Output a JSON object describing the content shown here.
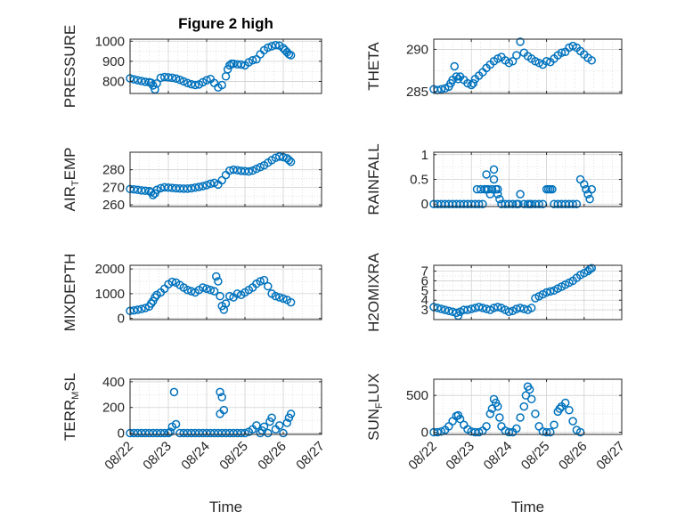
{
  "figure": {
    "title": "Figure 2 high",
    "colors": {
      "marker": "#0072BD",
      "grid": "#d0d0d0",
      "axis": "#262626",
      "background": "#ffffff"
    },
    "x_tick_labels": [
      "08/22",
      "08/23",
      "08/24",
      "08/25",
      "08/26",
      "08/27"
    ]
  },
  "chart_data": [
    {
      "id": "pressure",
      "type": "scatter",
      "title": "Figure 2 high",
      "ylabel": "PRESSURE",
      "xlabel": "",
      "xlim": [
        0,
        5
      ],
      "ylim": [
        740,
        1010
      ],
      "yticks": [
        800,
        900,
        1000
      ],
      "grid": true,
      "x": [
        0.0,
        0.1,
        0.2,
        0.3,
        0.4,
        0.5,
        0.55,
        0.6,
        0.65,
        0.7,
        0.8,
        0.9,
        1.0,
        1.1,
        1.2,
        1.3,
        1.4,
        1.5,
        1.6,
        1.7,
        1.8,
        1.9,
        2.0,
        2.1,
        2.2,
        2.3,
        2.4,
        2.5,
        2.55,
        2.6,
        2.65,
        2.7,
        2.8,
        2.9,
        3.0,
        3.1,
        3.2,
        3.3,
        3.4,
        3.5,
        3.6,
        3.7,
        3.8,
        3.9,
        4.0,
        4.05,
        4.1,
        4.15,
        4.2
      ],
      "y": [
        815,
        810,
        806,
        802,
        798,
        796,
        793,
        780,
        760,
        790,
        818,
        822,
        820,
        818,
        814,
        808,
        800,
        792,
        786,
        782,
        785,
        796,
        806,
        812,
        792,
        770,
        782,
        825,
        860,
        880,
        888,
        888,
        885,
        884,
        880,
        895,
        905,
        910,
        935,
        955,
        968,
        975,
        980,
        978,
        965,
        955,
        945,
        935,
        930
      ]
    },
    {
      "id": "theta",
      "type": "scatter",
      "ylabel": "THETA",
      "xlabel": "",
      "xlim": [
        0,
        5
      ],
      "ylim": [
        284.8,
        291.2
      ],
      "yticks": [
        285,
        290
      ],
      "grid": true,
      "x": [
        0.0,
        0.1,
        0.2,
        0.3,
        0.4,
        0.45,
        0.5,
        0.55,
        0.6,
        0.65,
        0.7,
        0.8,
        0.9,
        1.0,
        1.05,
        1.1,
        1.2,
        1.3,
        1.4,
        1.5,
        1.6,
        1.7,
        1.8,
        1.9,
        2.0,
        2.1,
        2.2,
        2.3,
        2.4,
        2.5,
        2.6,
        2.7,
        2.8,
        2.9,
        3.0,
        3.1,
        3.2,
        3.3,
        3.4,
        3.5,
        3.6,
        3.7,
        3.8,
        3.9,
        4.0,
        4.1,
        4.2
      ],
      "y": [
        285.3,
        285.2,
        285.3,
        285.4,
        285.6,
        286.0,
        286.4,
        288.0,
        286.8,
        286.5,
        286.8,
        286.4,
        286.0,
        285.8,
        286.0,
        286.5,
        286.9,
        287.3,
        287.8,
        288.2,
        288.6,
        288.9,
        289.1,
        288.7,
        288.4,
        288.6,
        289.3,
        290.9,
        289.6,
        289.2,
        288.9,
        288.6,
        288.4,
        288.2,
        288.6,
        288.5,
        288.9,
        289.3,
        289.6,
        289.7,
        290.2,
        290.4,
        290.2,
        289.8,
        289.4,
        289.0,
        288.7
      ]
    },
    {
      "id": "air_temp",
      "type": "scatter",
      "ylabel": "AIR_TEMP",
      "xlabel": "",
      "xlim": [
        0,
        5
      ],
      "ylim": [
        259,
        290
      ],
      "yticks": [
        260,
        270,
        280
      ],
      "grid": true,
      "x": [
        0.0,
        0.1,
        0.2,
        0.3,
        0.4,
        0.5,
        0.55,
        0.6,
        0.65,
        0.7,
        0.8,
        0.9,
        1.0,
        1.1,
        1.2,
        1.3,
        1.4,
        1.5,
        1.6,
        1.7,
        1.8,
        1.9,
        2.0,
        2.1,
        2.2,
        2.3,
        2.4,
        2.5,
        2.6,
        2.7,
        2.8,
        2.9,
        3.0,
        3.1,
        3.2,
        3.3,
        3.4,
        3.5,
        3.6,
        3.7,
        3.8,
        3.9,
        4.0,
        4.1,
        4.15,
        4.2
      ],
      "y": [
        269,
        268.8,
        268.5,
        268.2,
        268,
        267.8,
        267.2,
        265.5,
        266.5,
        268.5,
        269.5,
        270,
        269.8,
        269.6,
        269.4,
        269.3,
        269.2,
        269.2,
        269.4,
        269.8,
        270.2,
        270.6,
        271.2,
        272,
        272.5,
        271.5,
        274,
        277,
        279.5,
        280,
        279.7,
        279.4,
        279.2,
        279,
        279.5,
        280.5,
        281.5,
        282.5,
        284,
        285.5,
        286.8,
        287.5,
        287.2,
        286.5,
        285.5,
        284.5
      ]
    },
    {
      "id": "rainfall",
      "type": "scatter",
      "ylabel": "RAINFALL",
      "xlabel": "",
      "xlim": [
        0,
        5
      ],
      "ylim": [
        -0.05,
        1.05
      ],
      "yticks": [
        0,
        0.5,
        1
      ],
      "grid": true,
      "x": [
        0.0,
        0.1,
        0.2,
        0.3,
        0.4,
        0.5,
        0.6,
        0.7,
        0.8,
        0.9,
        1.0,
        1.1,
        1.15,
        1.2,
        1.25,
        1.3,
        1.35,
        1.4,
        1.4,
        1.45,
        1.5,
        1.55,
        1.6,
        1.6,
        1.65,
        1.7,
        1.7,
        1.75,
        1.8,
        1.9,
        2.0,
        2.1,
        2.2,
        2.25,
        2.3,
        2.4,
        2.5,
        2.55,
        2.6,
        2.7,
        2.8,
        2.9,
        3.0,
        3.05,
        3.1,
        3.15,
        3.2,
        3.3,
        3.4,
        3.5,
        3.6,
        3.7,
        3.8,
        3.9,
        4.0,
        4.05,
        4.1,
        4.15,
        4.2
      ],
      "y": [
        0,
        0,
        0,
        0,
        0,
        0,
        0,
        0,
        0,
        0,
        0,
        0,
        0.3,
        0,
        0.3,
        0,
        0.3,
        0.3,
        0.6,
        0.3,
        0.2,
        0.3,
        0.5,
        0.7,
        0.3,
        0.3,
        0.2,
        0.1,
        0,
        0,
        0,
        0,
        0,
        0,
        0.2,
        0,
        0,
        0,
        0,
        0,
        0,
        0,
        0.3,
        0.3,
        0.3,
        0.3,
        0,
        0,
        0,
        0,
        0,
        0,
        0,
        0.5,
        0.4,
        0.3,
        0.2,
        0.1,
        0.3
      ]
    },
    {
      "id": "mixdepth",
      "type": "scatter",
      "ylabel": "MIXDEPTH",
      "xlabel": "",
      "xlim": [
        0,
        5
      ],
      "ylim": [
        -50,
        2150
      ],
      "yticks": [
        0,
        1000,
        2000
      ],
      "grid": true,
      "x": [
        0.0,
        0.1,
        0.2,
        0.3,
        0.4,
        0.5,
        0.55,
        0.6,
        0.65,
        0.7,
        0.8,
        0.9,
        1.0,
        1.1,
        1.2,
        1.3,
        1.4,
        1.5,
        1.6,
        1.7,
        1.8,
        1.9,
        2.0,
        2.1,
        2.2,
        2.25,
        2.3,
        2.35,
        2.4,
        2.45,
        2.5,
        2.6,
        2.7,
        2.8,
        2.9,
        3.0,
        3.1,
        3.2,
        3.3,
        3.4,
        3.5,
        3.6,
        3.7,
        3.8,
        3.9,
        4.0,
        4.1,
        4.2
      ],
      "y": [
        300,
        320,
        350,
        380,
        420,
        480,
        600,
        700,
        850,
        950,
        1050,
        1200,
        1380,
        1480,
        1450,
        1350,
        1250,
        1150,
        1100,
        1050,
        1150,
        1250,
        1200,
        1150,
        1100,
        1700,
        1500,
        900,
        500,
        350,
        600,
        900,
        850,
        1000,
        950,
        1050,
        1150,
        1250,
        1400,
        1500,
        1550,
        1300,
        1000,
        900,
        850,
        800,
        750,
        650
      ]
    },
    {
      "id": "h2omixra",
      "type": "scatter",
      "ylabel": "H2OMIXRA",
      "xlabel": "",
      "xlim": [
        0,
        5
      ],
      "ylim": [
        2.0,
        7.6
      ],
      "yticks": [
        3,
        4,
        5,
        6,
        7
      ],
      "grid": true,
      "x": [
        0.0,
        0.1,
        0.2,
        0.3,
        0.4,
        0.5,
        0.6,
        0.65,
        0.7,
        0.8,
        0.9,
        1.0,
        1.1,
        1.2,
        1.3,
        1.4,
        1.5,
        1.6,
        1.7,
        1.8,
        1.9,
        2.0,
        2.1,
        2.2,
        2.3,
        2.4,
        2.5,
        2.6,
        2.7,
        2.8,
        2.9,
        3.0,
        3.1,
        3.2,
        3.3,
        3.4,
        3.5,
        3.6,
        3.7,
        3.8,
        3.9,
        4.0,
        4.1,
        4.15,
        4.2
      ],
      "y": [
        3.3,
        3.2,
        3.1,
        3.0,
        2.9,
        2.8,
        2.7,
        2.4,
        2.8,
        3.0,
        3.0,
        3.1,
        3.2,
        3.3,
        3.2,
        3.1,
        3.0,
        3.2,
        3.3,
        3.2,
        3.0,
        2.8,
        2.9,
        3.1,
        3.2,
        3.1,
        3.0,
        3.2,
        4.2,
        4.4,
        4.6,
        4.8,
        4.9,
        5.0,
        5.2,
        5.4,
        5.6,
        5.8,
        6.0,
        6.3,
        6.6,
        6.8,
        7.0,
        7.2,
        7.3
      ]
    },
    {
      "id": "terr_msl",
      "type": "scatter",
      "ylabel": "TERR_MSL",
      "xlabel": "Time",
      "xlim": [
        0,
        5
      ],
      "ylim": [
        -10,
        420
      ],
      "yticks": [
        0,
        200,
        400
      ],
      "grid": true,
      "x": [
        0.0,
        0.1,
        0.2,
        0.3,
        0.4,
        0.5,
        0.6,
        0.7,
        0.8,
        0.9,
        1.0,
        1.05,
        1.1,
        1.15,
        1.2,
        1.3,
        1.4,
        1.5,
        1.6,
        1.7,
        1.8,
        1.9,
        2.0,
        2.1,
        2.2,
        2.3,
        2.35,
        2.35,
        2.4,
        2.4,
        2.45,
        2.5,
        2.6,
        2.7,
        2.8,
        2.9,
        3.0,
        3.1,
        3.2,
        3.3,
        3.4,
        3.45,
        3.5,
        3.6,
        3.65,
        3.7,
        3.8,
        3.9,
        4.0,
        4.1,
        4.15,
        4.2
      ],
      "y": [
        0,
        0,
        0,
        0,
        0,
        0,
        0,
        0,
        0,
        0,
        0,
        10,
        50,
        320,
        70,
        0,
        0,
        0,
        0,
        0,
        0,
        0,
        0,
        0,
        0,
        0,
        150,
        320,
        280,
        0,
        180,
        0,
        0,
        0,
        0,
        0,
        0,
        10,
        30,
        60,
        0,
        20,
        50,
        0,
        90,
        120,
        30,
        60,
        0,
        80,
        120,
        150
      ]
    },
    {
      "id": "sun_flux",
      "type": "scatter",
      "ylabel": "SUN_FLUX",
      "xlabel": "Time",
      "xlim": [
        0,
        5
      ],
      "ylim": [
        -30,
        720
      ],
      "yticks": [
        0,
        500
      ],
      "grid": true,
      "x": [
        0.0,
        0.1,
        0.2,
        0.3,
        0.4,
        0.5,
        0.6,
        0.65,
        0.7,
        0.8,
        0.9,
        1.0,
        1.1,
        1.2,
        1.3,
        1.4,
        1.5,
        1.55,
        1.6,
        1.65,
        1.7,
        1.75,
        1.8,
        1.9,
        2.0,
        2.1,
        2.2,
        2.3,
        2.4,
        2.45,
        2.5,
        2.55,
        2.6,
        2.7,
        2.8,
        2.9,
        3.0,
        3.1,
        3.2,
        3.3,
        3.35,
        3.4,
        3.5,
        3.6,
        3.7,
        3.8,
        3.9
      ],
      "y": [
        0,
        0,
        10,
        30,
        80,
        150,
        220,
        230,
        180,
        100,
        40,
        10,
        0,
        0,
        20,
        80,
        250,
        320,
        450,
        400,
        350,
        200,
        80,
        20,
        0,
        0,
        50,
        200,
        350,
        500,
        620,
        580,
        450,
        250,
        80,
        10,
        0,
        0,
        100,
        280,
        320,
        350,
        400,
        300,
        150,
        30,
        0
      ]
    }
  ]
}
